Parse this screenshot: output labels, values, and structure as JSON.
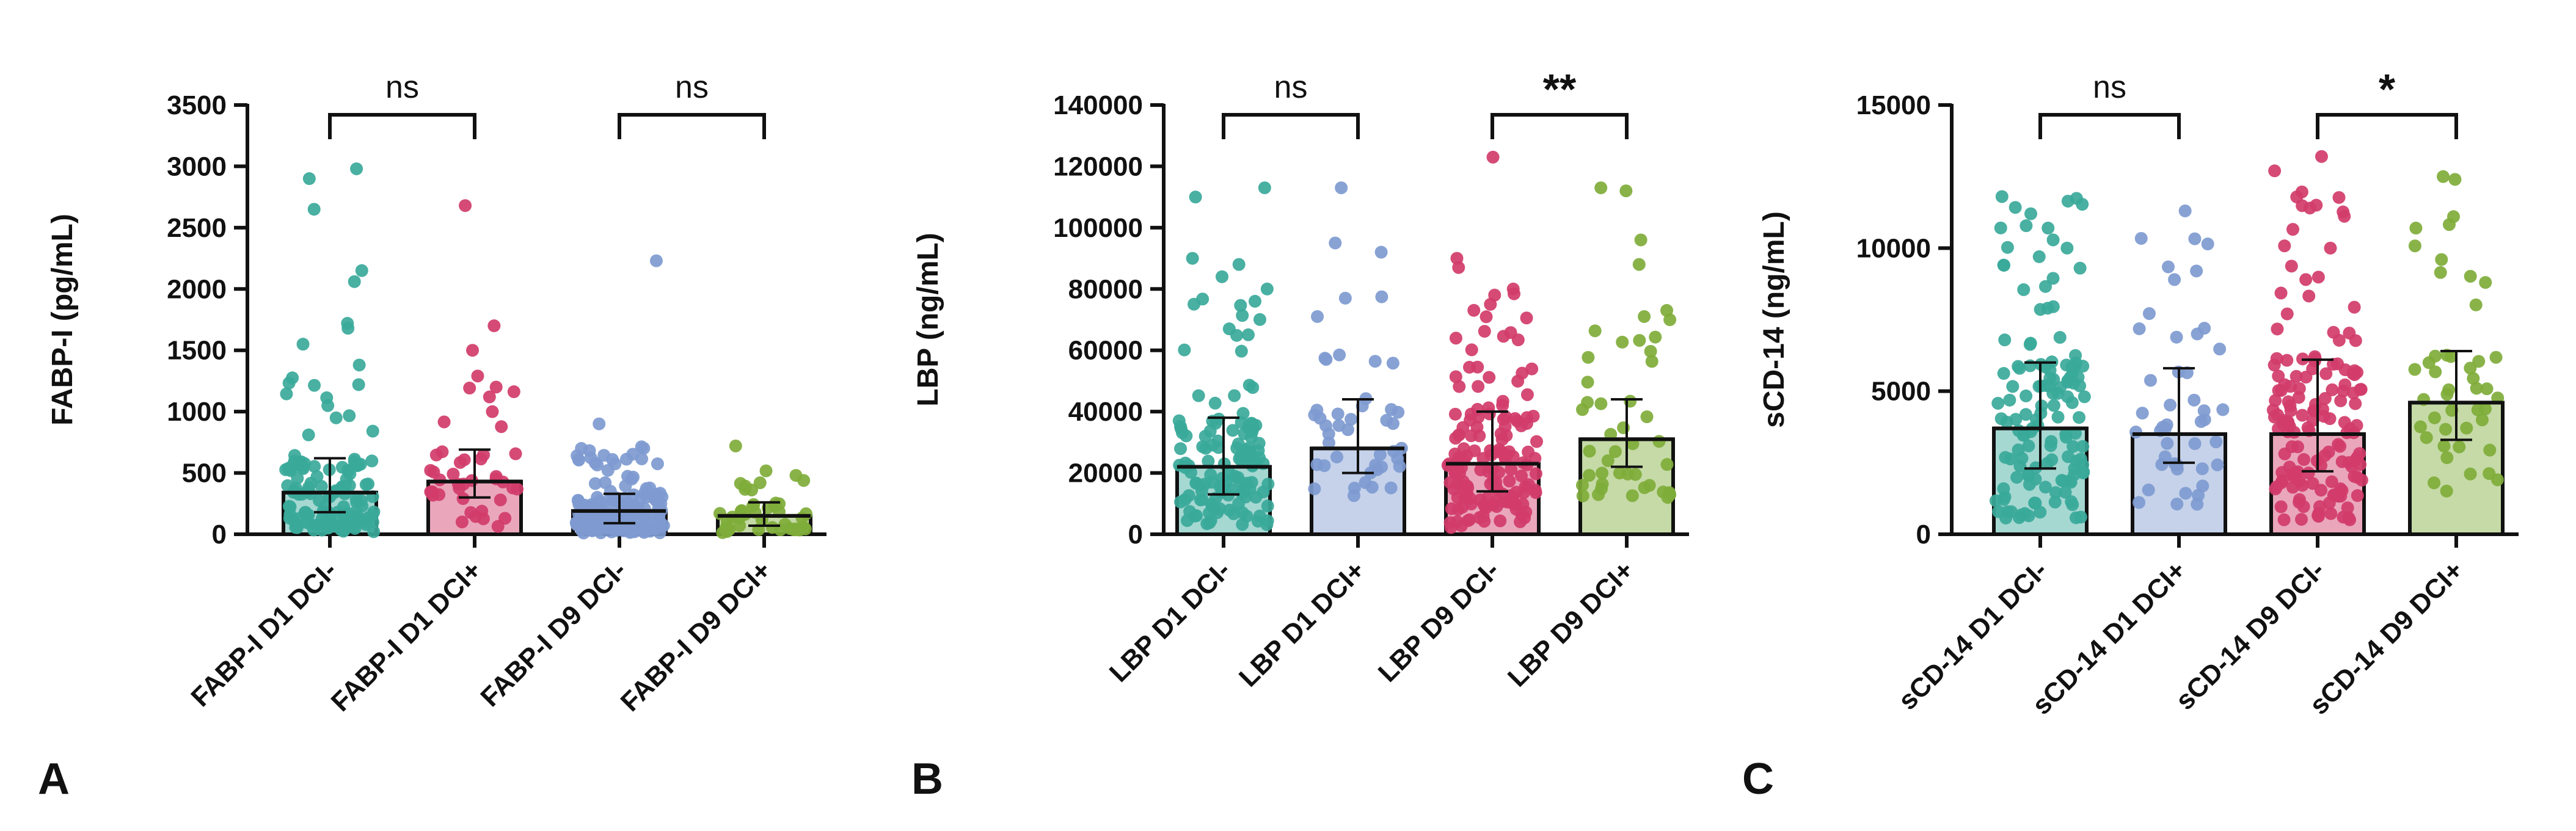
{
  "figure": {
    "panel_letters": [
      "A",
      "B",
      "C"
    ]
  },
  "chart_data": [
    {
      "type": "bar",
      "panel": "A",
      "title": "",
      "xlabel": "",
      "ylabel": "FABP-I (pg/mL)",
      "ylim": [
        0,
        3500
      ],
      "yticks": [
        0,
        500,
        1000,
        1500,
        2000,
        2500,
        3000,
        3500
      ],
      "ytick_labels": [
        "0",
        "500",
        "1000",
        "1500",
        "2000",
        "2500",
        "3000",
        "3500"
      ],
      "categories": [
        "FABP-I D1 DCI-",
        "FABP-I D1 DCI+",
        "FABP-I D9 DCI-",
        "FABP-I D9 DCI+"
      ],
      "colors": [
        "#3aa99a",
        "#d13c6a",
        "#7e9ad0",
        "#7fac3a"
      ],
      "values": [
        340,
        430,
        190,
        150
      ],
      "error_upper": [
        620,
        690,
        330,
        260
      ],
      "error_lower": [
        180,
        300,
        90,
        70
      ],
      "points_summary": [
        {
          "n": 135,
          "min": 20,
          "max": 2990,
          "high": [
            2980,
            2900,
            2650,
            2150,
            2060,
            1720,
            1680,
            1550,
            1380,
            1220
          ]
        },
        {
          "n": 45,
          "min": 60,
          "max": 2680,
          "high": [
            2680,
            1700,
            1500,
            1200,
            1120,
            1000
          ]
        },
        {
          "n": 150,
          "min": 10,
          "max": 2230,
          "high": [
            2230,
            900,
            700,
            640
          ]
        },
        {
          "n": 45,
          "min": 10,
          "max": 720,
          "high": [
            720,
            480,
            420
          ]
        }
      ],
      "significance": [
        {
          "from": 0,
          "to": 1,
          "label": "ns"
        },
        {
          "from": 2,
          "to": 3,
          "label": "ns"
        }
      ]
    },
    {
      "type": "bar",
      "panel": "B",
      "title": "",
      "xlabel": "",
      "ylabel": "LBP (ng/mL)",
      "ylim": [
        0,
        140000
      ],
      "yticks": [
        0,
        20000,
        40000,
        60000,
        80000,
        100000,
        120000,
        140000
      ],
      "ytick_labels": [
        "0",
        "20000",
        "40000",
        "60000",
        "80000",
        "100000",
        "120000",
        "140000"
      ],
      "categories": [
        "LBP D1 DCI-",
        "LBP D1 DCI+",
        "LBP D9 DCI-",
        "LBP D9 DCI+"
      ],
      "colors": [
        "#3aa99a",
        "#7e9ad0",
        "#d13c6a",
        "#7fac3a"
      ],
      "values": [
        22000,
        28000,
        23000,
        31000
      ],
      "error_upper": [
        38000,
        44000,
        40000,
        44000
      ],
      "error_lower": [
        13000,
        20000,
        14000,
        22000
      ],
      "points_summary": [
        {
          "n": 135,
          "min": 3000,
          "max": 113000,
          "high": [
            113000,
            110000,
            90000,
            88000,
            84000,
            80000
          ]
        },
        {
          "n": 45,
          "min": 12000,
          "max": 113000,
          "high": [
            113000,
            95000,
            92000,
            77000,
            71000
          ]
        },
        {
          "n": 150,
          "min": 2000,
          "max": 123000,
          "high": [
            123000,
            90000,
            87000,
            80000,
            75000
          ]
        },
        {
          "n": 45,
          "min": 12000,
          "max": 113000,
          "high": [
            113000,
            112000,
            96000,
            88000,
            73000,
            71000
          ]
        }
      ],
      "significance": [
        {
          "from": 0,
          "to": 1,
          "label": "ns"
        },
        {
          "from": 2,
          "to": 3,
          "label": "**"
        }
      ]
    },
    {
      "type": "bar",
      "panel": "C",
      "title": "",
      "xlabel": "",
      "ylabel": "sCD-14 (ng/mL)",
      "ylim": [
        0,
        15000
      ],
      "yticks": [
        0,
        5000,
        10000,
        15000
      ],
      "ytick_labels": [
        "0",
        "5000",
        "10000",
        "15000"
      ],
      "categories": [
        "sCD-14 D1 DCI-",
        "sCD-14 D1 DCI+",
        "sCD-14 D9 DCI-",
        "sCD-14 D9 DCI+"
      ],
      "colors": [
        "#3aa99a",
        "#7e9ad0",
        "#d13c6a",
        "#7fac3a"
      ],
      "values": [
        3700,
        3500,
        3500,
        4600
      ],
      "error_upper": [
        6000,
        5800,
        6100,
        6400
      ],
      "error_lower": [
        2300,
        2500,
        2200,
        3300
      ],
      "points_summary": [
        {
          "n": 135,
          "min": 500,
          "max": 11800,
          "high": [
            11800,
            11200,
            10700,
            10000,
            9700,
            9300
          ]
        },
        {
          "n": 45,
          "min": 1000,
          "max": 11300,
          "high": [
            11300,
            9200,
            8900,
            7200,
            7000
          ]
        },
        {
          "n": 150,
          "min": 500,
          "max": 13200,
          "high": [
            13200,
            12700,
            11500,
            11400,
            10000,
            8900
          ]
        },
        {
          "n": 45,
          "min": 1500,
          "max": 12500,
          "high": [
            12500,
            12400,
            11100,
            10700,
            9600,
            8800
          ]
        }
      ],
      "significance": [
        {
          "from": 0,
          "to": 1,
          "label": "ns"
        },
        {
          "from": 2,
          "to": 3,
          "label": "*"
        }
      ]
    }
  ]
}
